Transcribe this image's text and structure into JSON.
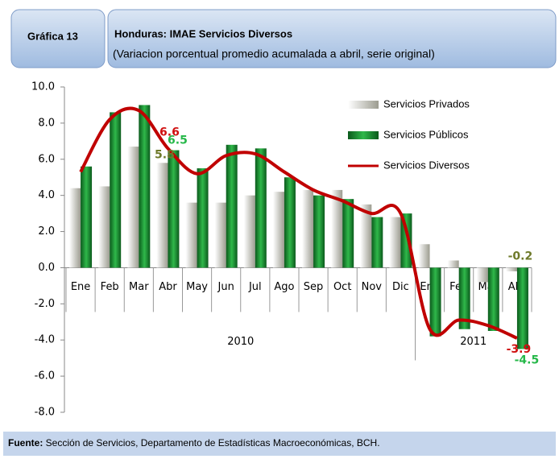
{
  "chart_data": {
    "type": "bar_line",
    "badge": "Gráfica  13",
    "title": "Honduras: IMAE Servicios  Diversos",
    "subtitle": "(Variacion porcentual promedio acumalada  a abril, serie original)",
    "categories": [
      "Ene",
      "Feb",
      "Mar",
      "Abr",
      "May",
      "Jun",
      "Jul",
      "Ago",
      "Sep",
      "Oct",
      "Nov",
      "Dic",
      "Ene",
      "Feb",
      "Mar",
      "Abr"
    ],
    "groups": [
      {
        "label": "2010",
        "count": 12
      },
      {
        "label": "2011",
        "count": 4
      }
    ],
    "series": [
      {
        "name": "Servicios Privados",
        "kind": "bar",
        "color": "#a6a69a",
        "values": [
          4.4,
          4.5,
          6.7,
          5.8,
          3.6,
          3.6,
          4.0,
          4.2,
          4.3,
          4.3,
          3.5,
          2.8,
          1.3,
          0.4,
          -0.8,
          -0.2
        ],
        "value_labels": [
          null,
          null,
          null,
          "5.8",
          null,
          null,
          null,
          null,
          null,
          null,
          null,
          null,
          null,
          null,
          null,
          "-0.2"
        ]
      },
      {
        "name": "Servicios Públicos",
        "kind": "bar",
        "color": "#138a2e",
        "values": [
          5.6,
          8.6,
          9.0,
          6.5,
          5.5,
          6.8,
          6.6,
          5.0,
          4.0,
          3.8,
          2.8,
          3.0,
          -3.8,
          -3.4,
          -3.5,
          -4.5
        ],
        "value_labels": [
          null,
          null,
          null,
          "6.5",
          null,
          null,
          null,
          null,
          null,
          null,
          null,
          null,
          null,
          null,
          null,
          "-4.5"
        ]
      },
      {
        "name": "Servicios Diversos",
        "kind": "line",
        "color": "#c00000",
        "values": [
          5.3,
          8.2,
          8.7,
          6.6,
          5.2,
          6.2,
          6.3,
          5.3,
          4.3,
          3.7,
          3.0,
          3.0,
          -3.4,
          -2.9,
          -3.2,
          -3.9
        ],
        "value_labels": [
          null,
          null,
          null,
          "6.6",
          null,
          null,
          null,
          null,
          null,
          null,
          null,
          null,
          null,
          null,
          null,
          "-3.9"
        ]
      }
    ],
    "ylim": [
      -8,
      10
    ],
    "yticks": [
      {
        "value": -8,
        "label": "-8.0"
      },
      {
        "value": -6,
        "label": "-6.0"
      },
      {
        "value": -4,
        "label": "-4.0"
      },
      {
        "value": -2,
        "label": "-2.0"
      },
      {
        "value": 0,
        "label": "0.0"
      },
      {
        "value": 2,
        "label": "2.0"
      },
      {
        "value": 4,
        "label": "4.0"
      },
      {
        "value": 6,
        "label": "6.0"
      },
      {
        "value": 8,
        "label": "8.0"
      },
      {
        "value": 10,
        "label": "10.0"
      }
    ],
    "source_label": "Fuente:",
    "source": " Sección de Servicios, Departamento de Estadísticas Macroeconómicas, BCH."
  }
}
